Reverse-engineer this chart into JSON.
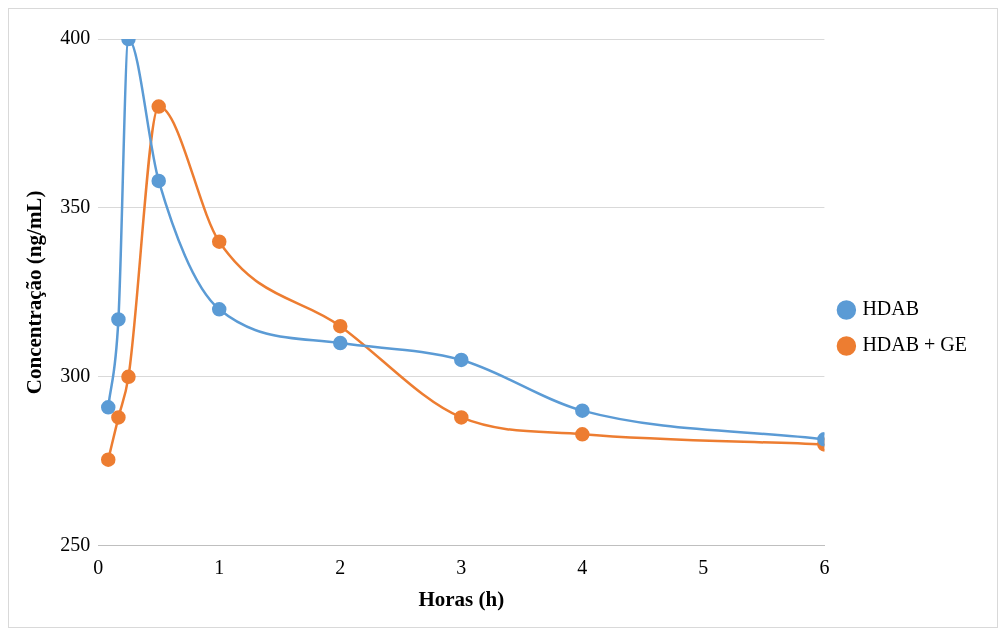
{
  "chart_data": {
    "type": "line",
    "xlabel": "Horas (h)",
    "ylabel": "Concentração (ng/mL)",
    "xlim": [
      0,
      6
    ],
    "xticks": [
      0,
      1,
      2,
      3,
      4,
      5,
      6
    ],
    "ylim": [
      250,
      400
    ],
    "yticks": [
      250,
      300,
      350,
      400
    ],
    "grid": "y",
    "legend": "right",
    "marker": "circle",
    "line_style": "solid",
    "series": [
      {
        "name": "HDAB",
        "color": "#5b9bd5",
        "x": [
          0.083,
          0.167,
          0.25,
          0.5,
          1,
          2,
          3,
          4,
          6
        ],
        "values": [
          291,
          317,
          400,
          358,
          320,
          310,
          305,
          290,
          281.5
        ]
      },
      {
        "name": "HDAB + GE",
        "color": "#ed7d31",
        "x": [
          0.083,
          0.167,
          0.25,
          0.5,
          1,
          2,
          3,
          4,
          6
        ],
        "values": [
          275.5,
          288,
          300,
          380,
          340,
          315,
          288,
          283,
          280
        ]
      }
    ]
  }
}
